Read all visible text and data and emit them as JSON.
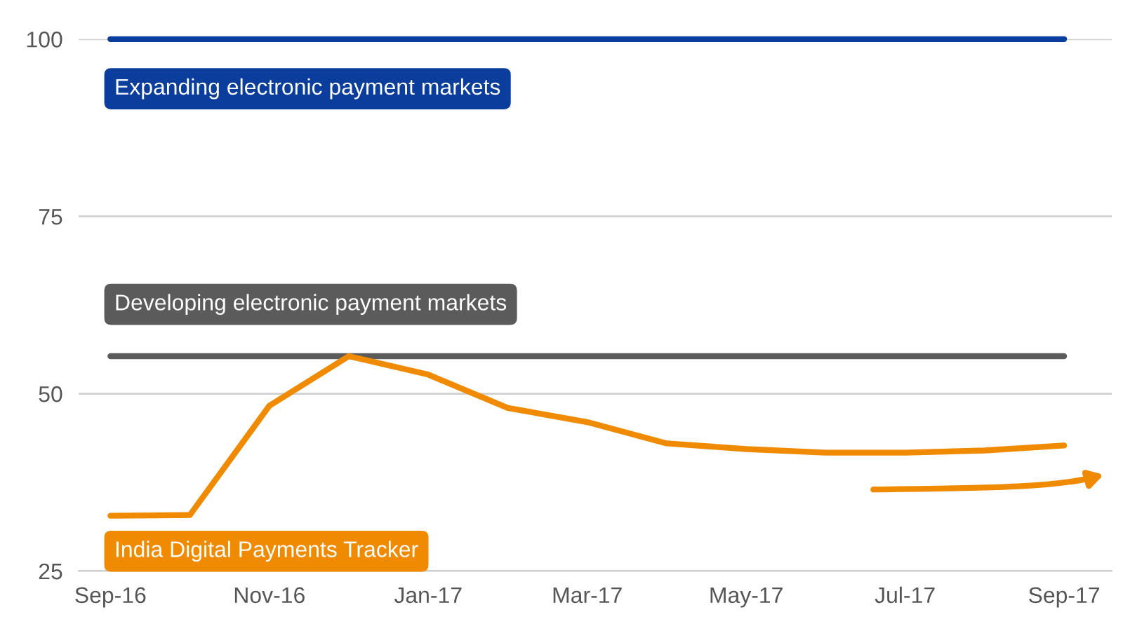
{
  "chart_data": {
    "type": "line",
    "categories": [
      "Sep-16",
      null,
      "Nov-16",
      null,
      "Jan-17",
      null,
      "Mar-17",
      null,
      "May-17",
      null,
      "Jul-17",
      null,
      "Sep-17"
    ],
    "series": [
      {
        "name": "Expanding electronic payment markets",
        "color": "#0a3d9c",
        "values": [
          100,
          100,
          100,
          100,
          100,
          100,
          100,
          100,
          100,
          100,
          100,
          100,
          100
        ]
      },
      {
        "name": "Developing electronic payment markets",
        "color": "#5b5b5b",
        "values": [
          55.3,
          55.3,
          55.3,
          55.3,
          55.3,
          55.3,
          55.3,
          55.3,
          55.3,
          55.3,
          55.3,
          55.3,
          55.3
        ]
      },
      {
        "name": "India Digital Payments Tracker",
        "color": "#f08a00",
        "values": [
          32.8,
          32.9,
          48.3,
          55.3,
          52.7,
          48.0,
          46.0,
          43.0,
          42.2,
          41.7,
          41.7,
          42.0,
          42.7
        ]
      }
    ],
    "ylim": [
      25,
      100
    ],
    "yticks": [
      25,
      50,
      75,
      100
    ],
    "grid": "y",
    "legend": false,
    "marker": "none",
    "line_style": "solid"
  }
}
